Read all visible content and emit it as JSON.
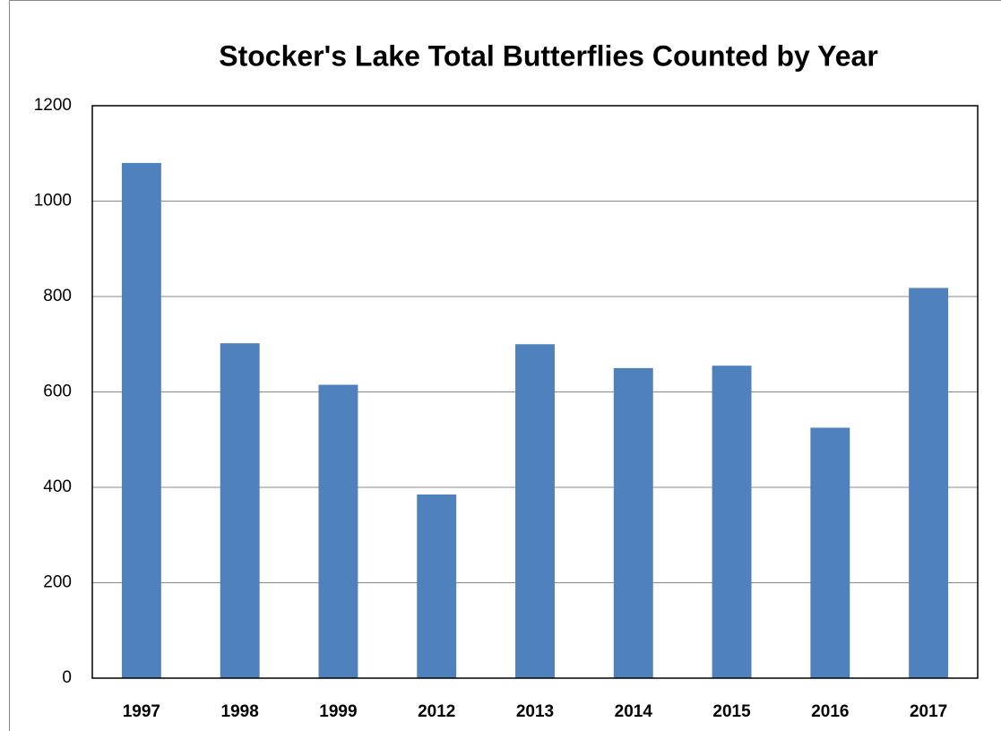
{
  "chart_data": {
    "type": "bar",
    "title": "Stocker's Lake Total Butterflies Counted by Year",
    "categories": [
      "1997",
      "1998",
      "1999",
      "2012",
      "2013",
      "2014",
      "2015",
      "2016",
      "2017"
    ],
    "values": [
      1080,
      702,
      615,
      385,
      700,
      650,
      655,
      525,
      818
    ],
    "color": "#4f81bd",
    "ylim": [
      0,
      1200
    ],
    "yticks": [
      0,
      200,
      400,
      600,
      800,
      1000,
      1200
    ],
    "grid": true
  }
}
